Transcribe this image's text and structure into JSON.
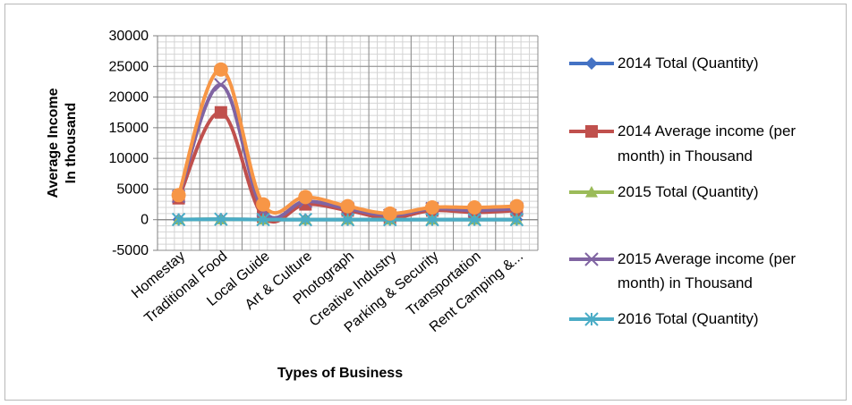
{
  "chart_data": {
    "type": "line",
    "title": "",
    "xlabel": "Types of Business",
    "ylabel_lines": [
      "Average Income",
      "In thousand"
    ],
    "ylim": [
      -5000,
      30000
    ],
    "yticks": [
      -5000,
      0,
      5000,
      10000,
      15000,
      20000,
      25000,
      30000
    ],
    "grid": true,
    "categories": [
      "Homestay",
      "Traditional Food",
      "Local Guide",
      "Art & Culture",
      "Photograph",
      "Creative Industry",
      "Parking & Security",
      "Transportation",
      "Rent Camping &..."
    ],
    "legend_position": "right",
    "series": [
      {
        "name": "2014 Total (Quantity)",
        "color": "#4472C4",
        "marker": "diamond",
        "values": [
          20,
          60,
          15,
          10,
          5,
          10,
          10,
          10,
          10
        ]
      },
      {
        "name": "2014 Average income (per month) in Thousand",
        "color": "#C0504D",
        "marker": "square",
        "values": [
          3500,
          17500,
          500,
          2500,
          1500,
          300,
          1500,
          1200,
          1500
        ]
      },
      {
        "name": "2015 Total (Quantity)",
        "color": "#9BBB59",
        "marker": "triangle",
        "values": [
          25,
          70,
          18,
          12,
          6,
          12,
          12,
          12,
          12
        ]
      },
      {
        "name": "2015 Average income (per month) in Thousand",
        "color": "#8064A2",
        "marker": "x",
        "values": [
          3800,
          22000,
          1500,
          3000,
          1800,
          700,
          1800,
          1500,
          1800
        ]
      },
      {
        "name": "2016 Total (Quantity)",
        "color": "#4BACC6",
        "marker": "star",
        "values": [
          30,
          80,
          20,
          15,
          8,
          15,
          15,
          15,
          15
        ]
      },
      {
        "name": "",
        "color": "#F79646",
        "marker": "circle",
        "values": [
          4000,
          24500,
          2500,
          3700,
          2200,
          1000,
          2000,
          2000,
          2200
        ]
      }
    ]
  }
}
